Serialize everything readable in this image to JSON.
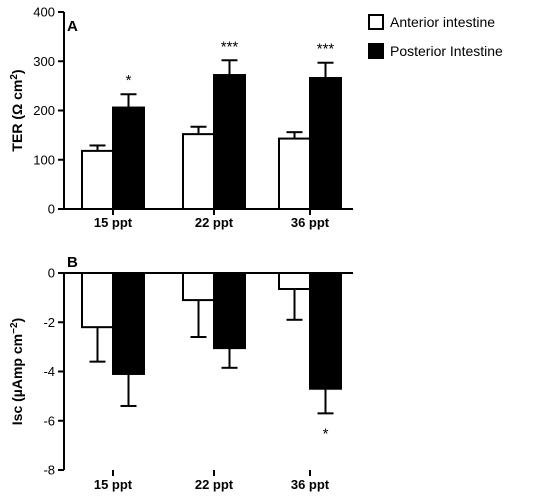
{
  "colors": {
    "anterior_fill": "#ffffff",
    "posterior_fill": "#000000",
    "stroke": "#000000"
  },
  "legend": {
    "position": "top-right",
    "items": [
      {
        "label": "Anterior intestine",
        "fill": "#ffffff"
      },
      {
        "label": "Posterior Intestine",
        "fill": "#000000"
      }
    ]
  },
  "chart_data": [
    {
      "type": "bar",
      "panel": "A",
      "categories": [
        "15 ppt",
        "22 ppt",
        "36 ppt"
      ],
      "ylabel": {
        "main": "TER (Ω cm",
        "sup": "2",
        "end": ")"
      },
      "ylim": [
        0,
        400
      ],
      "yticks": [
        0,
        100,
        200,
        300,
        400
      ],
      "grid": false,
      "series": [
        {
          "name": "Anterior intestine",
          "values": [
            118,
            152,
            143
          ],
          "errors": [
            11,
            15,
            13
          ],
          "significance": [
            "",
            "",
            ""
          ]
        },
        {
          "name": "Posterior Intestine",
          "values": [
            206,
            272,
            266
          ],
          "errors": [
            27,
            30,
            31
          ],
          "significance": [
            "*",
            "***",
            "***"
          ]
        }
      ]
    },
    {
      "type": "bar",
      "panel": "B",
      "categories": [
        "15 ppt",
        "22 ppt",
        "36 ppt"
      ],
      "ylabel": {
        "main": "Isc (µAmp cm",
        "sup": "−2",
        "end": ")"
      },
      "ylim": [
        -8,
        0
      ],
      "yticks": [
        0,
        -2,
        -4,
        -6,
        -8
      ],
      "grid": false,
      "series": [
        {
          "name": "Anterior intestine",
          "values": [
            -2.2,
            -1.1,
            -0.65
          ],
          "errors": [
            1.4,
            1.5,
            1.25
          ],
          "significance": [
            "",
            "",
            ""
          ]
        },
        {
          "name": "Posterior Intestine",
          "values": [
            -4.1,
            -3.05,
            -4.7
          ],
          "errors": [
            1.3,
            0.8,
            1.0
          ],
          "significance": [
            "",
            "",
            "*"
          ]
        }
      ]
    }
  ]
}
